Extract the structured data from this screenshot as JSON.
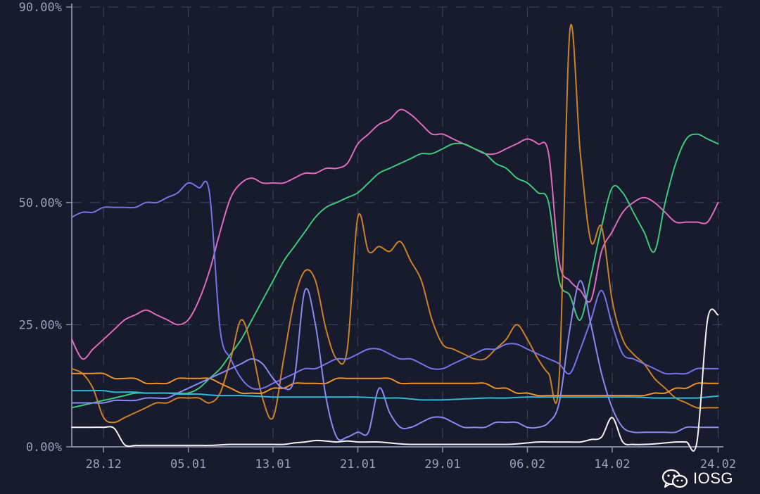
{
  "colors": {
    "background": "#181a2e",
    "axis": "#8a8fa8",
    "grid": "#3a3e58",
    "tick_text": "#9aa0bd"
  },
  "watermark": {
    "text": "IOSG",
    "icon": "wechat-icon"
  },
  "chart_data": {
    "type": "line",
    "title": "",
    "xlabel": "",
    "ylabel": "",
    "ylim": [
      0,
      90
    ],
    "y_ticks": [
      {
        "value": 0,
        "label": "0.00%"
      },
      {
        "value": 25,
        "label": "25.00%"
      },
      {
        "value": 50,
        "label": "50.00%"
      },
      {
        "value": 90,
        "label": "90.00%"
      }
    ],
    "x_range": [
      -1,
      60.5
    ],
    "x_ticks": [
      {
        "day": 2,
        "label": "28.12"
      },
      {
        "day": 10,
        "label": "05.01"
      },
      {
        "day": 18,
        "label": "13.01"
      },
      {
        "day": 26,
        "label": "21.01"
      },
      {
        "day": 34,
        "label": "29.01"
      },
      {
        "day": 42,
        "label": "06.02"
      },
      {
        "day": 50,
        "label": "14.02"
      },
      {
        "day": 60,
        "label": "24.02"
      }
    ],
    "x_axis_note": "x values are days; tick 28.12 = day 2",
    "grid": true,
    "legend": "none",
    "series": [
      {
        "color": "#e06cbe",
        "x": [
          -1,
          0,
          1,
          2,
          3,
          4,
          5,
          6,
          7,
          8,
          9,
          10,
          11,
          12,
          13,
          14,
          15,
          16,
          17,
          18,
          19,
          20,
          21,
          22,
          23,
          24,
          25,
          26,
          27,
          28,
          29,
          30,
          31,
          32,
          33,
          34,
          35,
          36,
          37,
          38,
          39,
          40,
          41,
          42,
          43,
          44,
          45,
          46,
          47,
          48,
          49,
          50,
          51,
          52,
          53,
          54,
          55,
          56,
          57,
          58,
          59,
          60
        ],
        "y": [
          22,
          18,
          20,
          22,
          24,
          26,
          27,
          28,
          27,
          26,
          25,
          26,
          30,
          36,
          44,
          51,
          54,
          55,
          54,
          54,
          54,
          55,
          56,
          56,
          57,
          57,
          58,
          62,
          64,
          66,
          67,
          69,
          68,
          66,
          64,
          64,
          63,
          62,
          61,
          60,
          60,
          61,
          62,
          63,
          62,
          60,
          38,
          34,
          32,
          30,
          40,
          44,
          48,
          50,
          51,
          50,
          48,
          46,
          46,
          46,
          46,
          50
        ]
      },
      {
        "color": "#3ec97a",
        "x": [
          -1,
          0,
          1,
          2,
          3,
          4,
          5,
          6,
          7,
          8,
          9,
          10,
          11,
          12,
          13,
          14,
          15,
          16,
          17,
          18,
          19,
          20,
          21,
          22,
          23,
          24,
          25,
          26,
          27,
          28,
          29,
          30,
          31,
          32,
          33,
          34,
          35,
          36,
          37,
          38,
          39,
          40,
          41,
          42,
          43,
          44,
          45,
          46,
          47,
          48,
          49,
          50,
          51,
          52,
          53,
          54,
          55,
          56,
          57,
          58,
          59,
          60
        ],
        "y": [
          8,
          8.5,
          9,
          9.5,
          10,
          10.5,
          11,
          11,
          11,
          11,
          11,
          11,
          12,
          14,
          16,
          19,
          22,
          26,
          30,
          34,
          38,
          41,
          44,
          47,
          49,
          50,
          51,
          52,
          54,
          56,
          57,
          58,
          59,
          60,
          60,
          61,
          62,
          62,
          61,
          60,
          58,
          57,
          55,
          54,
          52,
          50,
          34,
          31,
          26,
          35,
          45,
          53,
          52,
          48,
          44,
          40,
          50,
          58,
          63,
          64,
          63,
          62
        ]
      },
      {
        "color": "#c98326",
        "x": [
          -1,
          0,
          1,
          2,
          3,
          4,
          5,
          6,
          7,
          8,
          9,
          10,
          11,
          12,
          13,
          14,
          15,
          16,
          17,
          18,
          19,
          20,
          21,
          22,
          23,
          24,
          25,
          26,
          27,
          28,
          29,
          30,
          31,
          32,
          33,
          34,
          35,
          36,
          37,
          38,
          39,
          40,
          41,
          42,
          43,
          44,
          45,
          46,
          47,
          48,
          49,
          50,
          51,
          52,
          53,
          54,
          55,
          56,
          57,
          58,
          59,
          60
        ],
        "y": [
          16,
          15,
          12,
          6,
          5,
          6,
          7,
          8,
          9,
          9,
          10,
          10,
          10,
          9,
          11,
          18,
          26,
          20,
          10,
          6,
          18,
          30,
          36,
          34,
          24,
          18,
          20,
          47,
          40,
          41,
          40,
          42,
          38,
          34,
          26,
          21,
          20,
          19,
          18,
          18,
          20,
          22,
          25,
          22,
          18,
          15,
          14,
          85,
          60,
          42,
          45,
          30,
          22,
          19,
          17,
          14,
          12,
          10,
          9,
          8,
          8,
          8
        ]
      },
      {
        "color": "#f0922a",
        "x": [
          -1,
          0,
          1,
          2,
          3,
          4,
          5,
          6,
          7,
          8,
          9,
          10,
          11,
          12,
          13,
          14,
          15,
          16,
          17,
          18,
          19,
          20,
          21,
          22,
          23,
          24,
          25,
          26,
          27,
          28,
          29,
          30,
          31,
          32,
          33,
          34,
          35,
          36,
          37,
          38,
          39,
          40,
          41,
          42,
          43,
          44,
          45,
          46,
          47,
          48,
          49,
          50,
          51,
          52,
          53,
          54,
          55,
          56,
          57,
          58,
          59,
          60
        ],
        "y": [
          15,
          15,
          15,
          15,
          14,
          14,
          14,
          13,
          13,
          13,
          14,
          14,
          14,
          14,
          13,
          12,
          11,
          11,
          11,
          12,
          12,
          13,
          13,
          13,
          13,
          14,
          14,
          14,
          14,
          14,
          14,
          13,
          13,
          13,
          13,
          13,
          13,
          13,
          13,
          13,
          12,
          12,
          11,
          11,
          10.5,
          10.5,
          10.5,
          10.5,
          10.5,
          10.5,
          10.5,
          10.5,
          10.5,
          10.5,
          10.5,
          11,
          11,
          12,
          12,
          13,
          13,
          13
        ]
      },
      {
        "color": "#7575e8",
        "x": [
          -1,
          0,
          1,
          2,
          3,
          4,
          5,
          6,
          7,
          8,
          9,
          10,
          11,
          12,
          13,
          14,
          15,
          16,
          17,
          18,
          19,
          20,
          21,
          22,
          23,
          24,
          25,
          26,
          27,
          28,
          29,
          30,
          31,
          32,
          33,
          34,
          35,
          36,
          37,
          38,
          39,
          40,
          41,
          42,
          43,
          44,
          45,
          46,
          47,
          48,
          49,
          50,
          51,
          52,
          53,
          54,
          55,
          56,
          57,
          58,
          59,
          60
        ],
        "y": [
          47,
          48,
          48,
          49,
          49,
          49,
          49,
          50,
          50,
          51,
          52,
          54,
          53,
          52,
          24,
          18,
          14,
          12,
          12,
          13,
          14,
          15,
          16,
          16,
          17,
          18,
          18,
          19,
          20,
          20,
          19,
          18,
          18,
          17,
          16,
          16,
          17,
          18,
          19,
          20,
          20,
          21,
          21,
          20,
          19,
          18,
          17,
          15,
          20,
          26,
          32,
          25,
          19,
          18,
          17,
          16,
          15,
          15,
          15,
          16,
          16,
          16
        ]
      },
      {
        "color": "#8a8af0",
        "x": [
          -1,
          0,
          1,
          2,
          3,
          4,
          5,
          6,
          7,
          8,
          9,
          10,
          11,
          12,
          13,
          14,
          15,
          16,
          17,
          18,
          19,
          20,
          21,
          22,
          23,
          24,
          25,
          26,
          27,
          28,
          29,
          30,
          31,
          32,
          33,
          34,
          35,
          36,
          37,
          38,
          39,
          40,
          41,
          42,
          43,
          44,
          45,
          46,
          47,
          48,
          49,
          50,
          51,
          52,
          53,
          54,
          55,
          56,
          57,
          58,
          59,
          60
        ],
        "y": [
          9,
          9,
          9,
          9,
          9.5,
          9.5,
          9.5,
          10,
          10,
          10,
          11,
          12,
          13,
          14,
          15,
          16,
          17,
          18,
          17,
          14,
          12,
          14,
          32,
          25,
          10,
          2,
          2,
          3,
          3,
          12,
          7,
          4,
          4,
          5,
          6,
          6,
          5,
          4,
          4,
          4,
          5,
          5,
          5,
          4,
          4,
          5,
          9,
          24,
          34,
          25,
          15,
          8,
          4,
          3,
          3,
          3,
          3,
          3,
          4,
          4,
          4,
          4
        ]
      },
      {
        "color": "#30b8d8",
        "x": [
          -1,
          0,
          1,
          2,
          3,
          4,
          5,
          6,
          7,
          8,
          9,
          10,
          11,
          12,
          13,
          14,
          15,
          16,
          17,
          18,
          19,
          20,
          21,
          22,
          23,
          24,
          25,
          26,
          27,
          28,
          29,
          30,
          31,
          32,
          33,
          34,
          35,
          36,
          37,
          38,
          39,
          40,
          41,
          42,
          43,
          44,
          45,
          46,
          47,
          48,
          49,
          50,
          51,
          52,
          53,
          54,
          55,
          56,
          57,
          58,
          59,
          60
        ],
        "y": [
          11.5,
          11.5,
          11.5,
          11.5,
          11.2,
          11.2,
          11.2,
          11,
          11,
          11,
          10.8,
          10.8,
          10.8,
          10.6,
          10.5,
          10.5,
          10.5,
          10.4,
          10.3,
          10.2,
          10.2,
          10.2,
          10.2,
          10.2,
          10.2,
          10.2,
          10.2,
          10.2,
          10.1,
          10,
          10,
          10,
          9.8,
          9.6,
          9.6,
          9.6,
          9.7,
          9.8,
          9.9,
          10,
          10,
          10,
          10.1,
          10.2,
          10.2,
          10.2,
          10.2,
          10.2,
          10.2,
          10.2,
          10.2,
          10.2,
          10.2,
          10.2,
          10.1,
          10,
          10,
          10,
          10,
          10,
          10.2,
          10.4
        ]
      },
      {
        "color": "#f2f2f2",
        "x": [
          -1,
          0,
          1,
          2,
          3,
          4,
          5,
          6,
          7,
          8,
          9,
          10,
          11,
          12,
          13,
          14,
          15,
          16,
          17,
          18,
          19,
          20,
          21,
          22,
          23,
          24,
          25,
          26,
          27,
          28,
          29,
          30,
          31,
          32,
          33,
          34,
          35,
          36,
          37,
          38,
          39,
          40,
          41,
          42,
          43,
          44,
          45,
          46,
          47,
          48,
          49,
          50,
          51,
          52,
          53,
          54,
          55,
          56,
          57,
          58,
          59,
          60
        ],
        "y": [
          4,
          4,
          4,
          4,
          3.8,
          0.4,
          0.3,
          0.3,
          0.3,
          0.3,
          0.3,
          0.3,
          0.3,
          0.3,
          0.4,
          0.5,
          0.5,
          0.5,
          0.5,
          0.5,
          0.5,
          0.8,
          1,
          1.3,
          1.2,
          1,
          1.2,
          1,
          1,
          1,
          0.8,
          0.6,
          0.5,
          0.5,
          0.5,
          0.5,
          0.5,
          0.5,
          0.5,
          0.5,
          0.5,
          0.5,
          0.6,
          0.8,
          1,
          1,
          1,
          1,
          1,
          1.5,
          2,
          6,
          1,
          0.5,
          0.5,
          0.6,
          0.8,
          1,
          1,
          1,
          26,
          27
        ]
      }
    ]
  }
}
